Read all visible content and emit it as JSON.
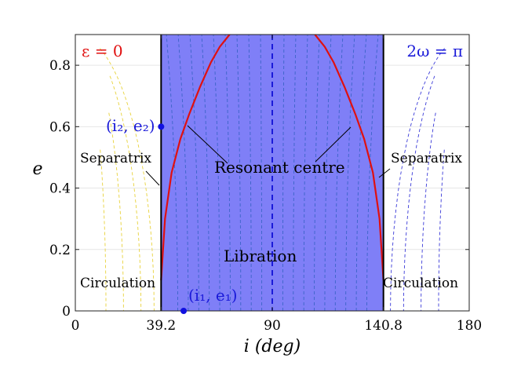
{
  "chart_data": {
    "type": "line",
    "xlabel": "i (deg)",
    "ylabel": "e",
    "xlim": [
      0,
      180
    ],
    "ylim": [
      0,
      0.9
    ],
    "x_ticks": [
      "0",
      "39.2",
      "90",
      "140.8",
      "180"
    ],
    "x_tick_values": [
      0,
      39.2,
      90,
      140.8,
      180
    ],
    "y_ticks": [
      "0",
      "0.2",
      "0.4",
      "0.6",
      "0.8"
    ],
    "y_tick_values": [
      0,
      0.2,
      0.4,
      0.6,
      0.8
    ],
    "libration_region": {
      "i_min": 39.2,
      "i_max": 140.8,
      "color": "#7f7ff7"
    },
    "separatrix_i": [
      39.2,
      140.8
    ],
    "center_line_i": 90,
    "resonant_centre_left": {
      "i": [
        39.2,
        41,
        44,
        48,
        52,
        57,
        62,
        66,
        70.5
      ],
      "e": [
        0.1,
        0.3,
        0.45,
        0.56,
        0.64,
        0.73,
        0.81,
        0.86,
        0.9
      ]
    },
    "resonant_centre_right": {
      "i": [
        109.5,
        114,
        118,
        123,
        128,
        132,
        136,
        139,
        140.8
      ],
      "e": [
        0.9,
        0.86,
        0.81,
        0.73,
        0.64,
        0.56,
        0.45,
        0.3,
        0.1
      ]
    },
    "points": [
      {
        "label": "(i_2, e_2)",
        "i": 39.2,
        "e": 0.6
      },
      {
        "label": "(i_1, e_1)",
        "i": 49.5,
        "e": 0.0
      }
    ],
    "annotations": {
      "left_corner": "ε = 0",
      "right_corner": "2ω = π",
      "separatrix_left": "Separatrix",
      "separatrix_right": "Separatrix",
      "resonant_centre": "Resonant centre",
      "libration": "Libration",
      "circulation_left": "Circulation",
      "circulation_right": "Circulation",
      "point_i2": "(i₂, e₂)",
      "point_i1": "(i₁, e₁)"
    },
    "colors": {
      "region": "#7f7ff7",
      "resonant_centre": "#e01010",
      "left_contours": "#e8d23a",
      "right_contours": "#3a3ad8",
      "inner_contours": "#3c64c8",
      "points": "#1010e0"
    }
  }
}
